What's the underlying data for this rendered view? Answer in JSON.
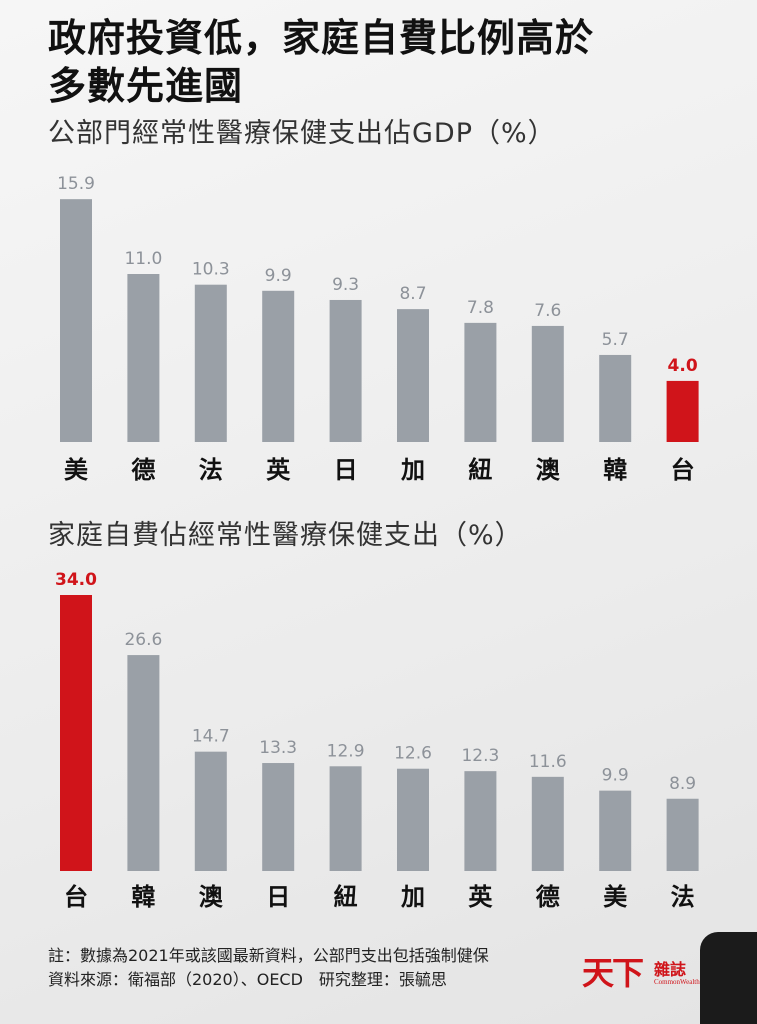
{
  "headline": {
    "line1": "政府投資低，家庭自費比例高於",
    "line2": "多數先進國"
  },
  "colors": {
    "bar": "#9aa0a7",
    "highlight": "#d0141a"
  },
  "chart_data": [
    {
      "type": "bar",
      "title": "公部門經常性醫療保健支出佔GDP（%）",
      "categories": [
        "美",
        "德",
        "法",
        "英",
        "日",
        "加",
        "紐",
        "澳",
        "韓",
        "台"
      ],
      "values": [
        15.9,
        11.0,
        10.3,
        9.9,
        9.3,
        8.7,
        7.8,
        7.6,
        5.7,
        4.0
      ],
      "value_labels": [
        "15.9",
        "11.0",
        "10.3",
        "9.9",
        "9.3",
        "8.7",
        "7.8",
        "7.6",
        "5.7",
        "4.0"
      ],
      "highlight": "台",
      "ylim": [
        0,
        16.5
      ],
      "grid": false,
      "legend": "none"
    },
    {
      "type": "bar",
      "title": "家庭自費佔經常性醫療保健支出（%）",
      "categories": [
        "台",
        "韓",
        "澳",
        "日",
        "紐",
        "加",
        "英",
        "德",
        "美",
        "法"
      ],
      "values": [
        34.0,
        26.6,
        14.7,
        13.3,
        12.9,
        12.6,
        12.3,
        11.6,
        9.9,
        8.9
      ],
      "value_labels": [
        "34.0",
        "26.6",
        "14.7",
        "13.3",
        "12.9",
        "12.6",
        "12.3",
        "11.6",
        "9.9",
        "8.9"
      ],
      "highlight": "台",
      "ylim": [
        0,
        34.0
      ],
      "grid": false,
      "legend": "none"
    }
  ],
  "footer": {
    "note": "註：數據為2021年或該國最新資料，公部門支出包括強制健保",
    "source": "資料來源：衛福部（2020）、OECD　研究整理：張毓思"
  },
  "logo": {
    "main": "天下",
    "sub": "雜誌",
    "english": "CommonWealth Magazine"
  }
}
